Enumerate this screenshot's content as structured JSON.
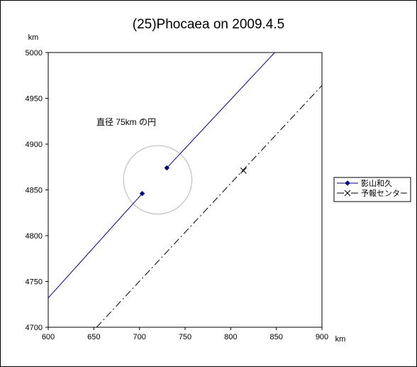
{
  "chart_data": {
    "type": "line",
    "title": "(25)Phocaea on 2009.4.5",
    "xlabel": "km",
    "ylabel": "km",
    "xlim": [
      600,
      900
    ],
    "ylim": [
      4700,
      5000
    ],
    "xticks": [
      "600",
      "650",
      "700",
      "750",
      "800",
      "850",
      "900"
    ],
    "yticks": [
      "4700",
      "4750",
      "4800",
      "4850",
      "4900",
      "4950",
      "5000"
    ],
    "grid": false,
    "legend_position": "right",
    "annotation": "直径 75km の円",
    "circle": {
      "center": [
        720,
        4861
      ],
      "diameter": 75,
      "color": "#c0c0c0"
    },
    "series": [
      {
        "name": "影山和久",
        "color": "#000080",
        "style": "solid",
        "marker": "diamond",
        "segments": [
          [
            [
              600,
              4732
            ],
            [
              703,
              4846
            ]
          ],
          [
            [
              730,
              4874
            ],
            [
              851,
              5003
            ]
          ]
        ],
        "points": [
          [
            703,
            4846
          ],
          [
            730,
            4874
          ]
        ]
      },
      {
        "name": "予報センター",
        "color": "#000000",
        "style": "dashdot",
        "marker": "x",
        "segments": [
          [
            [
              653,
              4700
            ],
            [
              900,
              4964
            ]
          ]
        ],
        "points": [
          [
            814,
            4871
          ]
        ]
      }
    ]
  }
}
